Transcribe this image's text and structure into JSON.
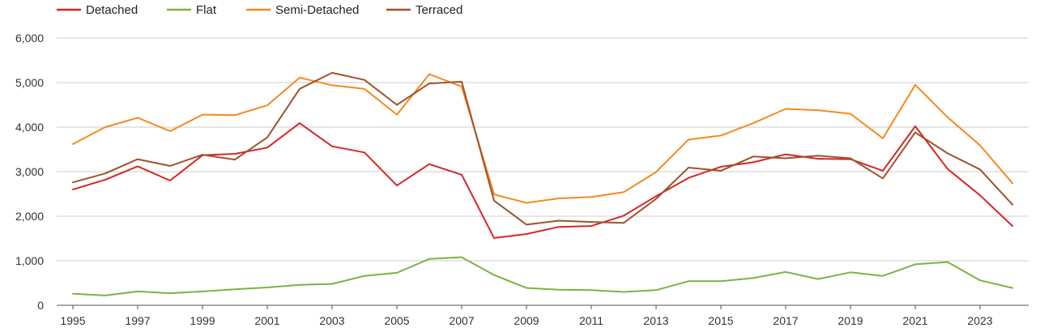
{
  "chart_data": {
    "type": "line",
    "title": "",
    "xlabel": "",
    "ylabel": "",
    "ylim": [
      0,
      6000
    ],
    "y_ticks": [
      "0",
      "1,000",
      "2,000",
      "3,000",
      "4,000",
      "5,000",
      "6,000"
    ],
    "y_tick_values": [
      0,
      1000,
      2000,
      3000,
      4000,
      5000,
      6000
    ],
    "x_ticks": [
      "1995",
      "1997",
      "1999",
      "2001",
      "2003",
      "2005",
      "2007",
      "2009",
      "2011",
      "2013",
      "2015",
      "2017",
      "2019",
      "2021",
      "2023"
    ],
    "x_tick_values": [
      1995,
      1997,
      1999,
      2001,
      2003,
      2005,
      2007,
      2009,
      2011,
      2013,
      2015,
      2017,
      2019,
      2021,
      2023
    ],
    "x": [
      1995,
      1996,
      1997,
      1998,
      1999,
      2000,
      2001,
      2002,
      2003,
      2004,
      2005,
      2006,
      2007,
      2008,
      2009,
      2010,
      2011,
      2012,
      2013,
      2014,
      2015,
      2016,
      2017,
      2018,
      2019,
      2020,
      2021,
      2022,
      2023,
      2024
    ],
    "grid": true,
    "legend": "top-left",
    "series": [
      {
        "name": "Detached",
        "color": "#d62728",
        "values": [
          2600,
          2820,
          3120,
          2800,
          3370,
          3400,
          3540,
          4090,
          3570,
          3430,
          2690,
          3170,
          2930,
          1510,
          1600,
          1760,
          1780,
          2010,
          2450,
          2860,
          3110,
          3210,
          3390,
          3290,
          3280,
          3020,
          4020,
          3060,
          2470,
          1780
        ]
      },
      {
        "name": "Flat",
        "color": "#7cb342",
        "values": [
          260,
          220,
          310,
          270,
          310,
          360,
          400,
          460,
          480,
          660,
          730,
          1040,
          1080,
          680,
          390,
          350,
          340,
          300,
          340,
          540,
          540,
          610,
          750,
          590,
          740,
          660,
          920,
          970,
          560,
          390
        ]
      },
      {
        "name": "Semi-Detached",
        "color": "#f5891f",
        "values": [
          3620,
          4000,
          4210,
          3910,
          4280,
          4270,
          4490,
          5110,
          4940,
          4860,
          4280,
          5190,
          4910,
          2490,
          2300,
          2400,
          2430,
          2540,
          2990,
          3720,
          3810,
          4090,
          4410,
          4380,
          4300,
          3750,
          4950,
          4220,
          3590,
          2740
        ]
      },
      {
        "name": "Terraced",
        "color": "#a0522d",
        "values": [
          2760,
          2960,
          3280,
          3130,
          3380,
          3270,
          3770,
          4860,
          5220,
          5060,
          4500,
          4980,
          5020,
          2350,
          1810,
          1900,
          1870,
          1850,
          2390,
          3090,
          3020,
          3340,
          3300,
          3360,
          3300,
          2850,
          3880,
          3410,
          3050,
          2260
        ]
      }
    ]
  }
}
